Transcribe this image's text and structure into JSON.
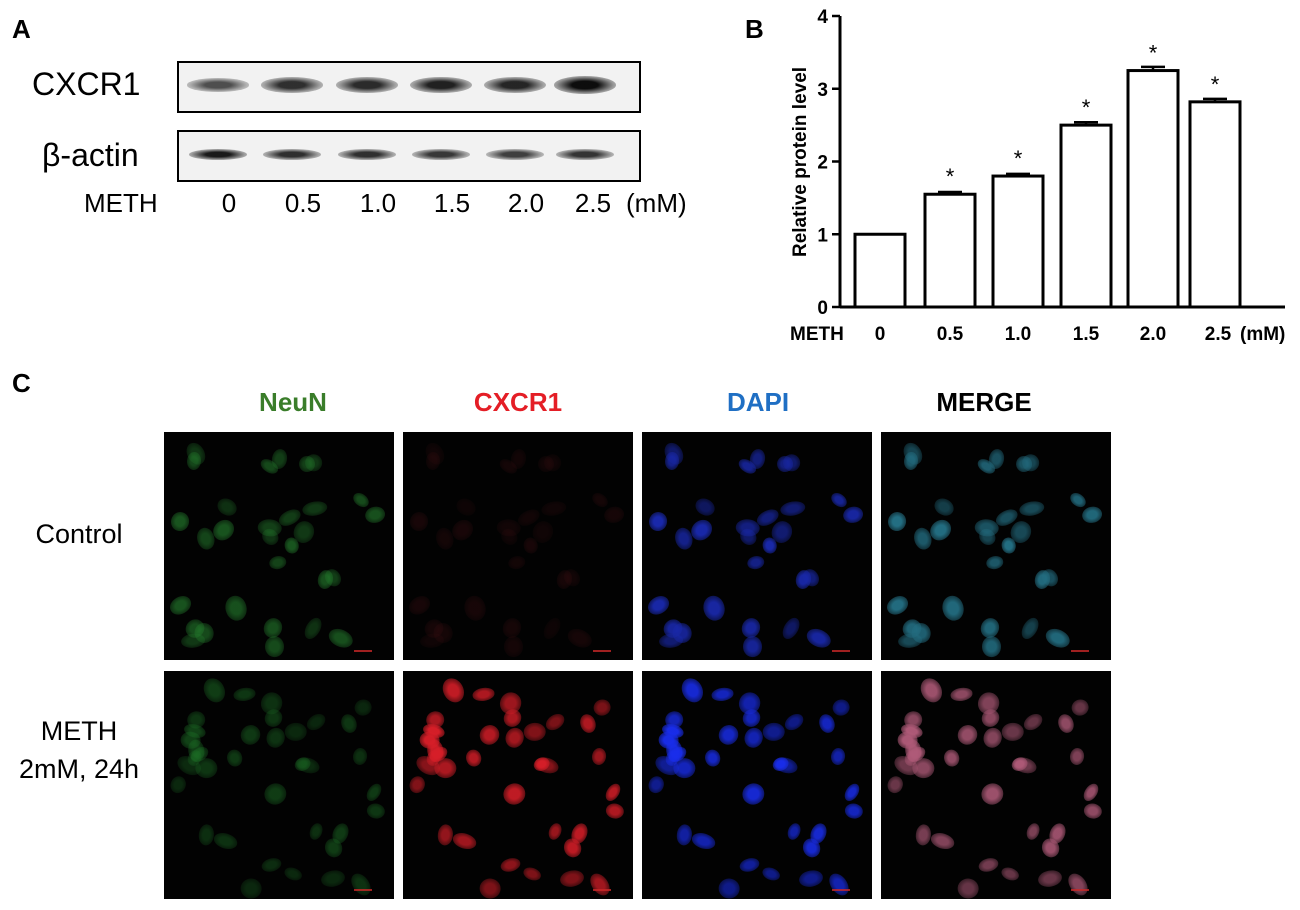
{
  "panels": {
    "a": "A",
    "b": "B",
    "c": "C"
  },
  "blot": {
    "rows": [
      {
        "label": "CXCR1",
        "intensity": [
          0.55,
          0.75,
          0.78,
          0.85,
          0.82,
          0.98
        ]
      },
      {
        "label": "β-actin",
        "intensity": [
          0.9,
          0.75,
          0.75,
          0.7,
          0.65,
          0.72
        ]
      }
    ],
    "treatment_label": "METH",
    "lanes": [
      "0",
      "0.5",
      "1.0",
      "1.5",
      "2.0",
      "2.5"
    ],
    "unit": "(mM)"
  },
  "chart_data": {
    "type": "bar",
    "categories": [
      "0",
      "0.5",
      "1.0",
      "1.5",
      "2.0",
      "2.5"
    ],
    "values": [
      1.0,
      1.55,
      1.8,
      2.5,
      3.25,
      2.82
    ],
    "errors": [
      0.0,
      0.03,
      0.03,
      0.04,
      0.05,
      0.04
    ],
    "significance": [
      "",
      "*",
      "*",
      "*",
      "*",
      "*"
    ],
    "ylabel": "Relative protein level",
    "xlabel_prefix": "METH",
    "x_unit": "(mM)",
    "ylim": [
      0,
      4
    ],
    "yticks": [
      0,
      1,
      2,
      3,
      4
    ],
    "bar_color": "#ffffff",
    "edge_color": "#000000"
  },
  "microscopy": {
    "channels": [
      {
        "name": "NeuN",
        "color": "#3a7d2a"
      },
      {
        "name": "CXCR1",
        "color": "#e41e26"
      },
      {
        "name": "DAPI",
        "color": "#1f6fc4"
      },
      {
        "name": "MERGE",
        "color": "#000000"
      }
    ],
    "conditions": [
      {
        "label_line1": "Control",
        "label_line2": ""
      },
      {
        "label_line1": "METH",
        "label_line2": "2mM, 24h"
      }
    ]
  }
}
